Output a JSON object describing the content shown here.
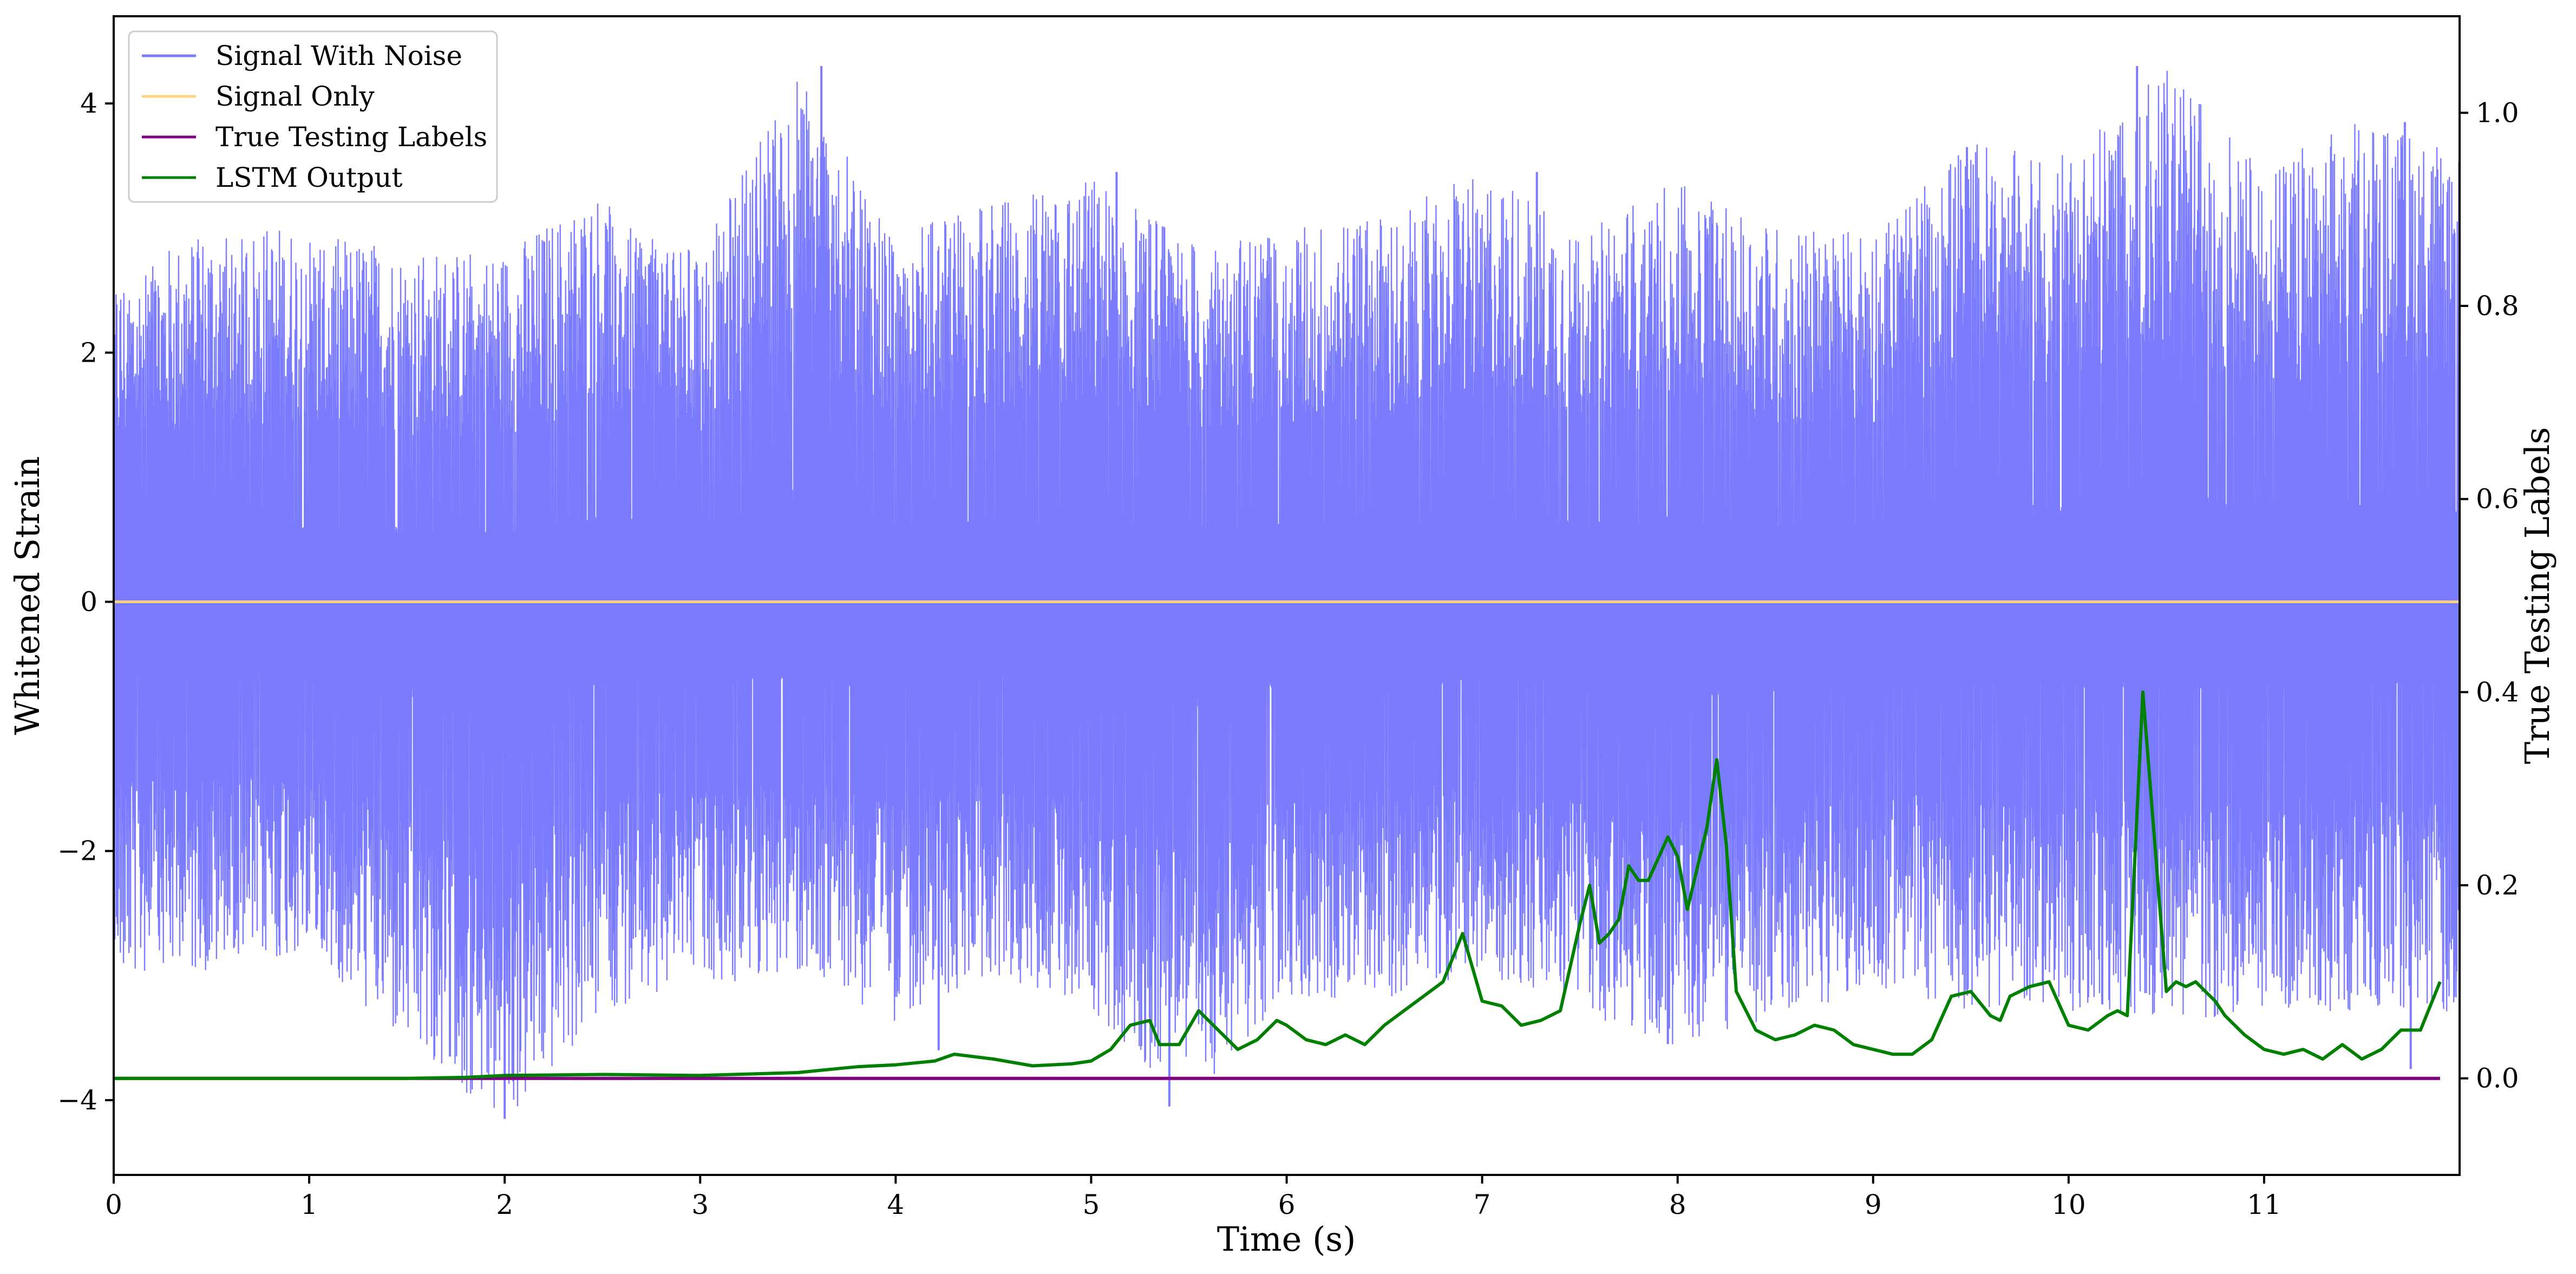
{
  "chart_data": {
    "type": "line",
    "title": "",
    "xlabel": "Time (s)",
    "ylabel": "Whitened Strain",
    "ylabel_right": "True Testing Labels",
    "xlim": [
      0,
      12
    ],
    "ylim": [
      -4.6,
      4.7
    ],
    "ylim_right": [
      -0.1,
      1.1
    ],
    "xticks": [
      "0",
      "1",
      "2",
      "3",
      "4",
      "5",
      "6",
      "7",
      "8",
      "9",
      "10",
      "11"
    ],
    "yticks": [
      "−4",
      "−2",
      "0",
      "2",
      "4"
    ],
    "yticks_right": [
      "0.0",
      "0.2",
      "0.4",
      "0.6",
      "0.8",
      "1.0"
    ],
    "grid": false,
    "legend_position": "upper-left",
    "series": [
      {
        "name": "Signal With Noise",
        "axis": "left",
        "color": "#7b7bff",
        "note_style": "dense noise",
        "envelope_x": [
          0,
          0.5,
          1,
          1.5,
          2,
          2.5,
          3,
          3.5,
          4,
          4.5,
          5,
          5.5,
          6,
          6.5,
          7,
          7.5,
          8,
          8.5,
          9,
          9.5,
          10,
          10.5,
          11,
          11.5,
          12
        ],
        "envelope_max": [
          2.6,
          3.0,
          3.0,
          2.8,
          2.8,
          3.3,
          2.8,
          4.3,
          3.0,
          3.2,
          3.4,
          2.9,
          3.0,
          3.1,
          3.5,
          3.0,
          3.4,
          3.0,
          3.0,
          3.7,
          3.6,
          4.3,
          3.5,
          3.9,
          3.6
        ],
        "envelope_min": [
          -3.0,
          -3.0,
          -2.8,
          -3.6,
          -4.2,
          -3.3,
          -3.1,
          -3.0,
          -3.4,
          -3.0,
          -3.3,
          -4.1,
          -3.2,
          -3.2,
          -3.0,
          -3.3,
          -3.6,
          -3.4,
          -3.1,
          -3.3,
          -3.3,
          -3.4,
          -3.3,
          -3.3,
          -3.3
        ],
        "spikes": [
          {
            "x": 3.62,
            "y": 4.3
          },
          {
            "x": 10.35,
            "y": 4.3
          },
          {
            "x": 11.72,
            "y": 3.85
          },
          {
            "x": 9.48,
            "y": 3.65
          },
          {
            "x": 7.28,
            "y": 3.45
          },
          {
            "x": 5.13,
            "y": 3.45
          },
          {
            "x": 1.98,
            "y": -3.25
          },
          {
            "x": 2.0,
            "y": -4.15
          },
          {
            "x": 5.4,
            "y": -4.05
          },
          {
            "x": 1.72,
            "y": -3.65
          },
          {
            "x": 4.22,
            "y": -3.6
          },
          {
            "x": 7.95,
            "y": -3.55
          },
          {
            "x": 11.75,
            "y": -3.75
          }
        ]
      },
      {
        "name": "Signal Only",
        "axis": "left",
        "color": "#ffd27f",
        "x": [
          0,
          12
        ],
        "y": [
          0,
          0
        ]
      },
      {
        "name": "True Testing Labels",
        "axis": "right",
        "color": "#800080",
        "x": [
          0,
          11.9
        ],
        "y": [
          0,
          0
        ]
      },
      {
        "name": "LSTM Output",
        "axis": "right",
        "color": "#008000",
        "x": [
          0,
          1.5,
          1.8,
          2.0,
          2.5,
          3.0,
          3.5,
          3.7,
          3.8,
          4.0,
          4.2,
          4.3,
          4.5,
          4.7,
          4.9,
          5.0,
          5.1,
          5.2,
          5.3,
          5.35,
          5.45,
          5.55,
          5.65,
          5.75,
          5.85,
          5.95,
          6.0,
          6.1,
          6.2,
          6.3,
          6.4,
          6.5,
          6.6,
          6.7,
          6.8,
          6.9,
          7.0,
          7.1,
          7.2,
          7.3,
          7.4,
          7.5,
          7.55,
          7.6,
          7.65,
          7.7,
          7.75,
          7.8,
          7.85,
          7.95,
          8.0,
          8.05,
          8.15,
          8.2,
          8.25,
          8.3,
          8.4,
          8.5,
          8.6,
          8.7,
          8.8,
          8.9,
          9.0,
          9.1,
          9.2,
          9.3,
          9.4,
          9.5,
          9.6,
          9.65,
          9.7,
          9.8,
          9.9,
          10.0,
          10.1,
          10.2,
          10.25,
          10.3,
          10.38,
          10.45,
          10.5,
          10.55,
          10.6,
          10.65,
          10.7,
          10.75,
          10.8,
          10.9,
          11.0,
          11.1,
          11.2,
          11.3,
          11.4,
          11.5,
          11.6,
          11.7,
          11.8,
          11.9
        ],
        "y": [
          0.0,
          0.0,
          0.001,
          0.003,
          0.004,
          0.003,
          0.006,
          0.01,
          0.012,
          0.014,
          0.018,
          0.025,
          0.02,
          0.013,
          0.015,
          0.018,
          0.03,
          0.055,
          0.06,
          0.035,
          0.035,
          0.07,
          0.05,
          0.03,
          0.04,
          0.06,
          0.055,
          0.04,
          0.035,
          0.045,
          0.035,
          0.055,
          0.07,
          0.085,
          0.1,
          0.15,
          0.08,
          0.075,
          0.055,
          0.06,
          0.07,
          0.16,
          0.2,
          0.14,
          0.15,
          0.165,
          0.22,
          0.205,
          0.205,
          0.25,
          0.23,
          0.175,
          0.26,
          0.33,
          0.24,
          0.09,
          0.05,
          0.04,
          0.045,
          0.055,
          0.05,
          0.035,
          0.03,
          0.025,
          0.025,
          0.04,
          0.085,
          0.09,
          0.065,
          0.06,
          0.085,
          0.095,
          0.1,
          0.055,
          0.05,
          0.065,
          0.07,
          0.065,
          0.4,
          0.22,
          0.09,
          0.1,
          0.095,
          0.1,
          0.09,
          0.08,
          0.065,
          0.045,
          0.03,
          0.025,
          0.03,
          0.02,
          0.035,
          0.02,
          0.03,
          0.05,
          0.05,
          0.1
        ]
      }
    ]
  }
}
